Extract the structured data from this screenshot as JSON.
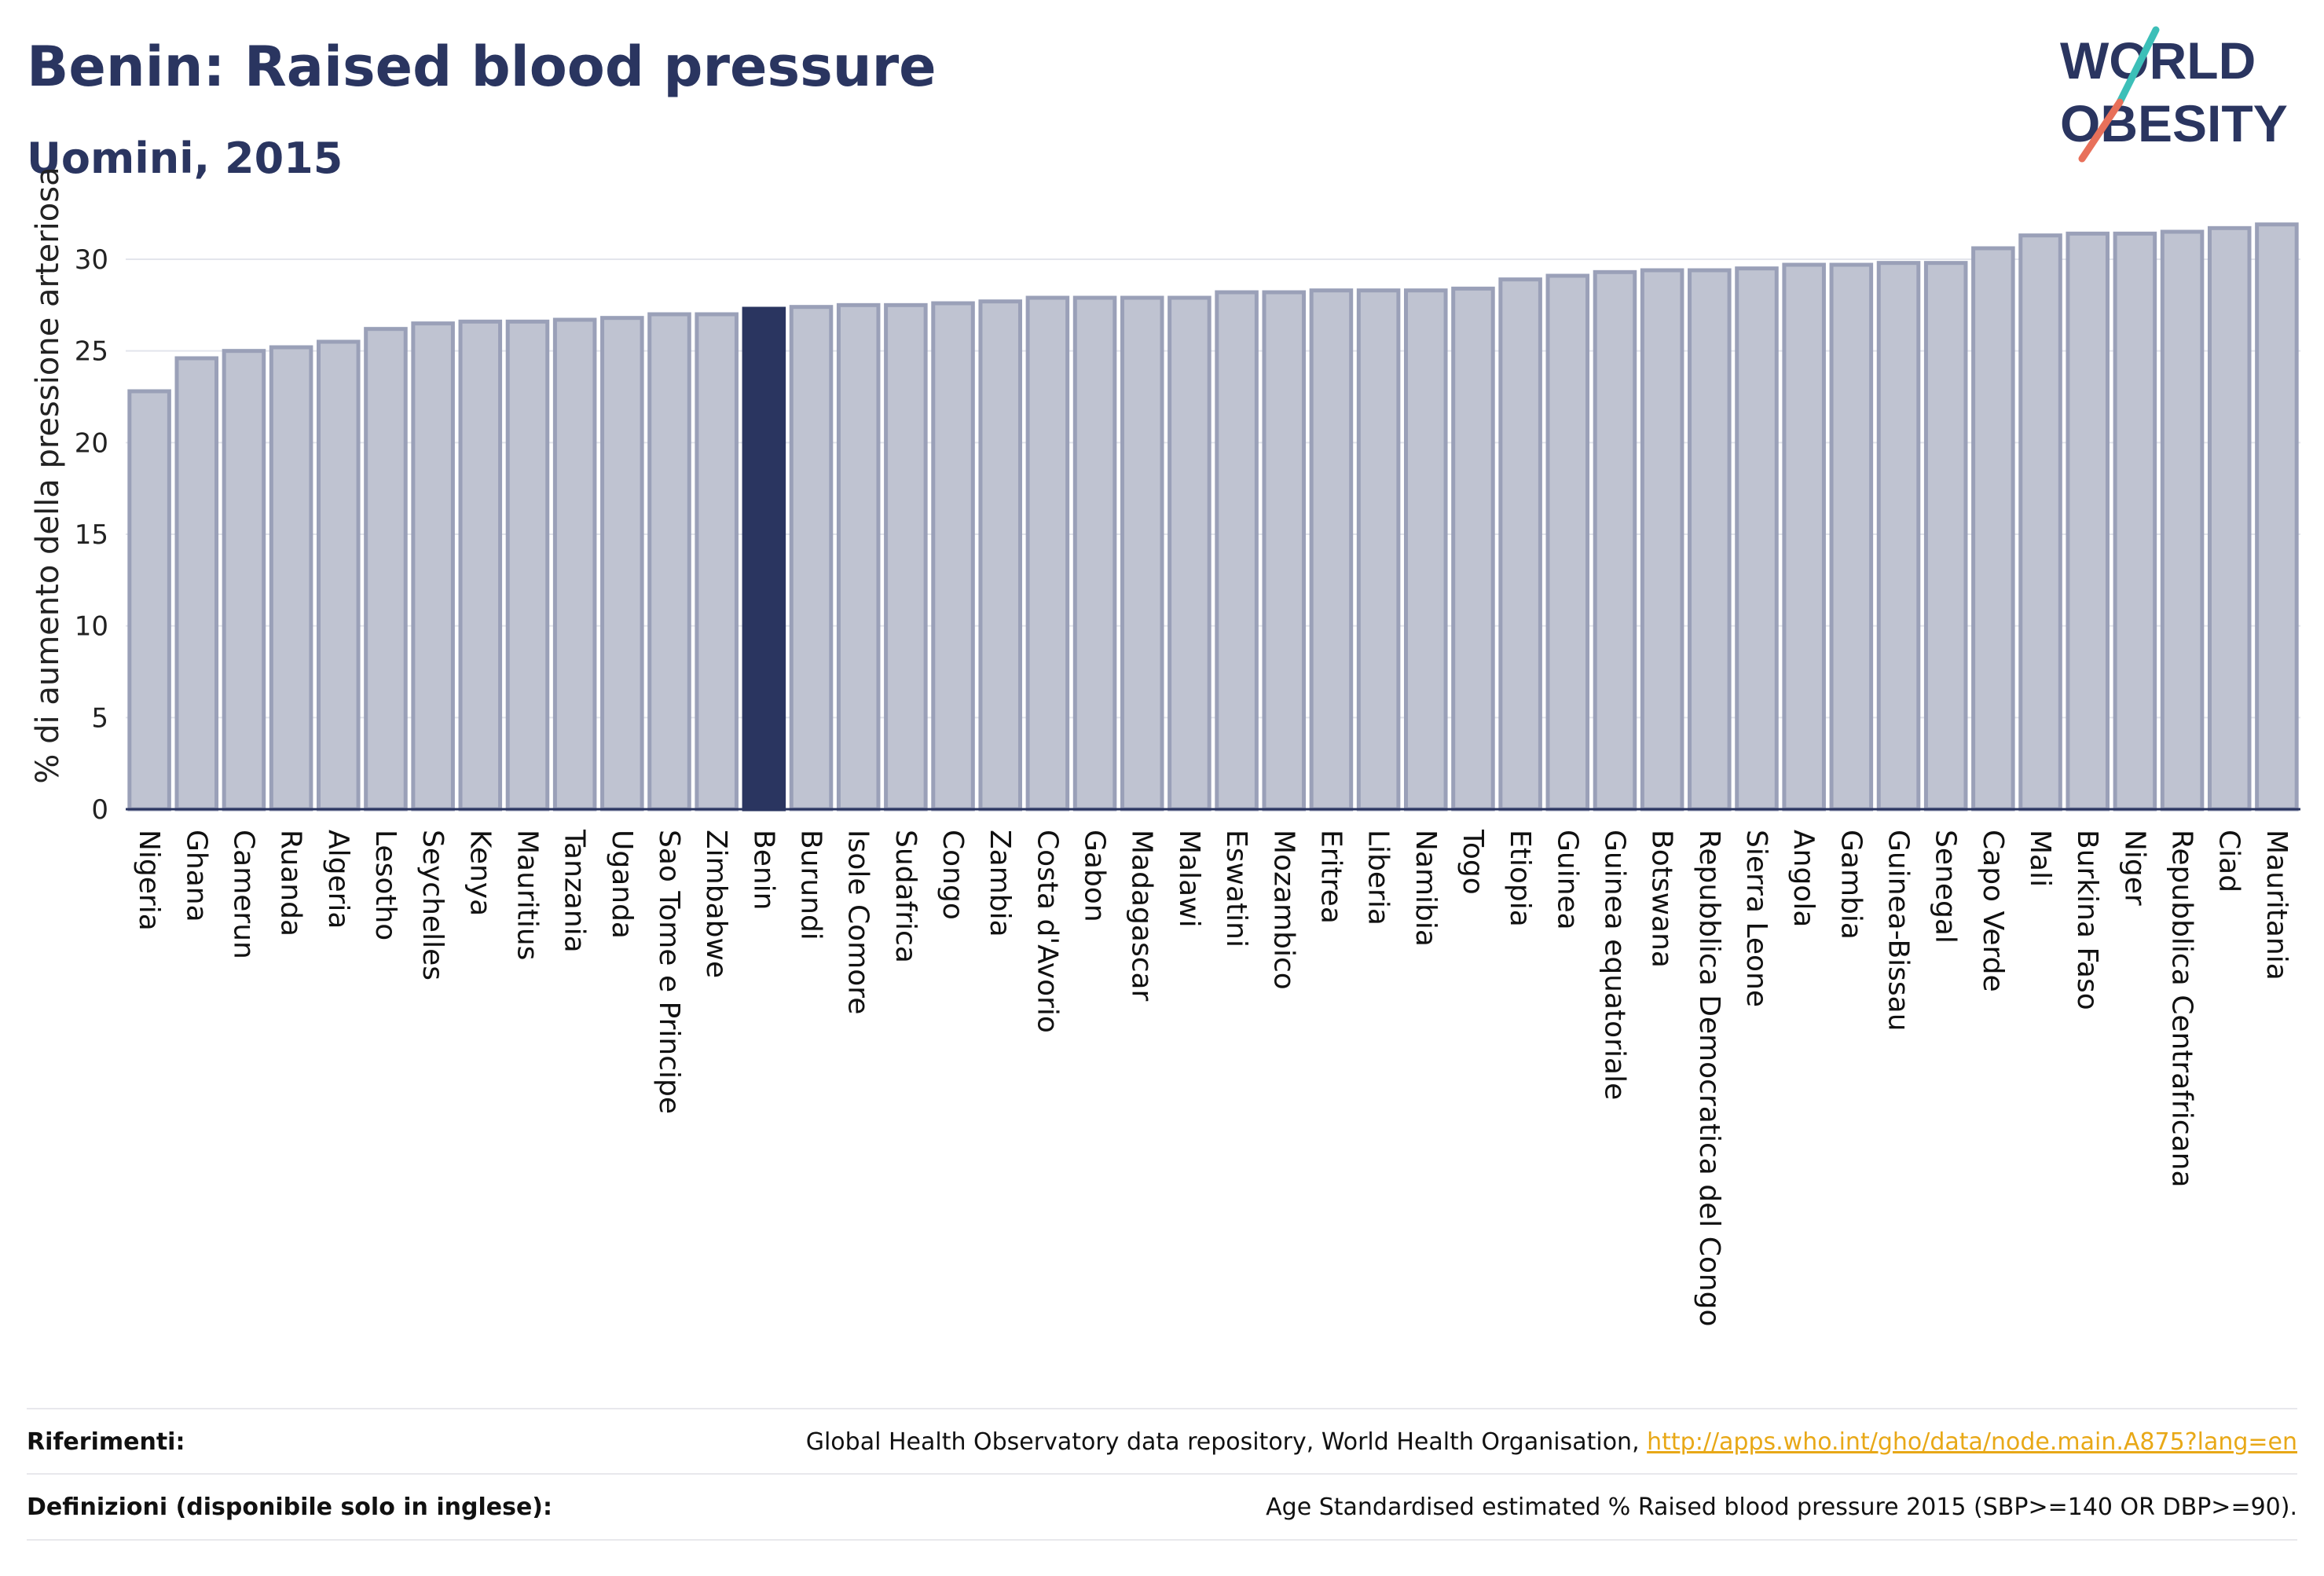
{
  "header": {
    "title": "Benin: Raised blood pressure",
    "subtitle": "Uomini, 2015"
  },
  "logo": {
    "line1": "WORLD",
    "line2": "OBESITY"
  },
  "colors": {
    "bar": "#bfc3d1",
    "bar_stroke": "#9aa0b8",
    "highlight": "#2a3560",
    "text": "#2a3560",
    "link": "#e8a817",
    "logo_slash_top": "#3cbfb8",
    "logo_slash_bottom": "#e8705a"
  },
  "chart_data": {
    "type": "bar",
    "ylabel": "% di aumento della pressione arteriosa",
    "ylim": [
      0,
      33
    ],
    "yticks": [
      0,
      5,
      10,
      15,
      20,
      25,
      30
    ],
    "grid": true,
    "highlight": "Benin",
    "categories": [
      "Nigeria",
      "Ghana",
      "Camerun",
      "Ruanda",
      "Algeria",
      "Lesotho",
      "Seychelles",
      "Kenya",
      "Mauritius",
      "Tanzania",
      "Uganda",
      "Sao Tome e Principe",
      "Zimbabwe",
      "Benin",
      "Burundi",
      "Isole Comore",
      "Sudafrica",
      "Congo",
      "Zambia",
      "Costa d'Avorio",
      "Gabon",
      "Madagascar",
      "Malawi",
      "Eswatini",
      "Mozambico",
      "Eritrea",
      "Liberia",
      "Namibia",
      "Togo",
      "Etiopia",
      "Guinea",
      "Guinea equatoriale",
      "Botswana",
      "Repubblica Democratica del Congo",
      "Sierra Leone",
      "Angola",
      "Gambia",
      "Guinea-Bissau",
      "Senegal",
      "Capo Verde",
      "Mali",
      "Burkina Faso",
      "Niger",
      "Repubblica Centrafricana",
      "Ciad",
      "Mauritania"
    ],
    "values": [
      22.8,
      24.6,
      25.0,
      25.2,
      25.5,
      26.2,
      26.5,
      26.6,
      26.6,
      26.7,
      26.8,
      27.0,
      27.0,
      27.3,
      27.4,
      27.5,
      27.5,
      27.6,
      27.7,
      27.9,
      27.9,
      27.9,
      27.9,
      28.2,
      28.2,
      28.3,
      28.3,
      28.3,
      28.4,
      28.9,
      29.1,
      29.3,
      29.4,
      29.4,
      29.5,
      29.7,
      29.7,
      29.8,
      29.8,
      30.6,
      31.3,
      31.4,
      31.4,
      31.5,
      31.7,
      31.9
    ]
  },
  "footer": {
    "refs_label": "Riferimenti:",
    "refs_text": "Global Health Observatory data repository, World Health Organisation, ",
    "refs_link": "http://apps.who.int/gho/data/node.main.A875?lang=en",
    "defs_label": "Definizioni (disponibile solo in inglese):",
    "defs_text": "Age Standardised estimated % Raised blood pressure 2015 (SBP>=140 OR DBP>=90)."
  }
}
